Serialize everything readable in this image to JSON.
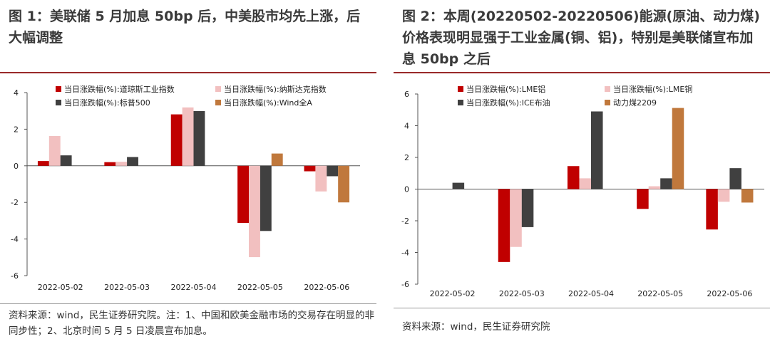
{
  "panel1": {
    "title": "图 1：美联储 5 月加息 50bp 后，中美股市均先上涨，后大幅调整",
    "source": "资料来源：wind，民生证券研究院。注：1、中国和欧美金融市场的交易存在明显的非同步性；2、北京时间 5 月 5 日凌晨宣布加息。",
    "chart_data": {
      "type": "bar",
      "categories": [
        "2022-05-02",
        "2022-05-03",
        "2022-05-04",
        "2022-05-05",
        "2022-05-06"
      ],
      "ylim": [
        -6,
        4
      ],
      "yticks": [
        4,
        2,
        0,
        -2,
        -4,
        -6
      ],
      "legend": "top",
      "series": [
        {
          "name": "当日涨跌幅(%):道琼斯工业指数",
          "color": "#c00000",
          "values": [
            0.26,
            0.2,
            2.81,
            -3.12,
            -0.3
          ]
        },
        {
          "name": "当日涨跌幅(%):纳斯达克指数",
          "color": "#f2c0c0",
          "values": [
            1.63,
            0.22,
            3.19,
            -4.99,
            -1.4
          ]
        },
        {
          "name": "当日涨跌幅(%):标普500",
          "color": "#404040",
          "values": [
            0.57,
            0.48,
            2.99,
            -3.56,
            -0.57
          ]
        },
        {
          "name": "当日涨跌幅(%):Wind全A",
          "color": "#c0783c",
          "values": [
            null,
            null,
            null,
            0.67,
            -2.0
          ]
        }
      ]
    }
  },
  "panel2": {
    "title": "图 2：本周(20220502-20220506)能源(原油、动力煤)价格表现明显强于工业金属(铜、铝)，特别是美联储宣布加息 50bp 之后",
    "source": "资料来源：wind，民生证券研究院",
    "chart_data": {
      "type": "bar",
      "categories": [
        "2022-05-02",
        "2022-05-03",
        "2022-05-04",
        "2022-05-05",
        "2022-05-06"
      ],
      "ylim": [
        -6,
        6
      ],
      "yticks": [
        6,
        4,
        2,
        0,
        -2,
        -4,
        -6
      ],
      "legend": "top",
      "series": [
        {
          "name": "当日涨跌幅(%):LME铝",
          "color": "#c00000",
          "values": [
            null,
            -4.6,
            1.45,
            -1.25,
            -2.55
          ]
        },
        {
          "name": "当日涨跌幅(%):LME铜",
          "color": "#f2c0c0",
          "values": [
            null,
            -3.65,
            0.68,
            0.18,
            -0.8
          ]
        },
        {
          "name": "当日涨跌幅(%):ICE布油",
          "color": "#404040",
          "values": [
            0.4,
            -2.4,
            4.9,
            0.68,
            1.32
          ]
        },
        {
          "name": "动力煤2209",
          "color": "#c0783c",
          "values": [
            null,
            null,
            null,
            5.12,
            -0.85
          ]
        }
      ]
    }
  }
}
